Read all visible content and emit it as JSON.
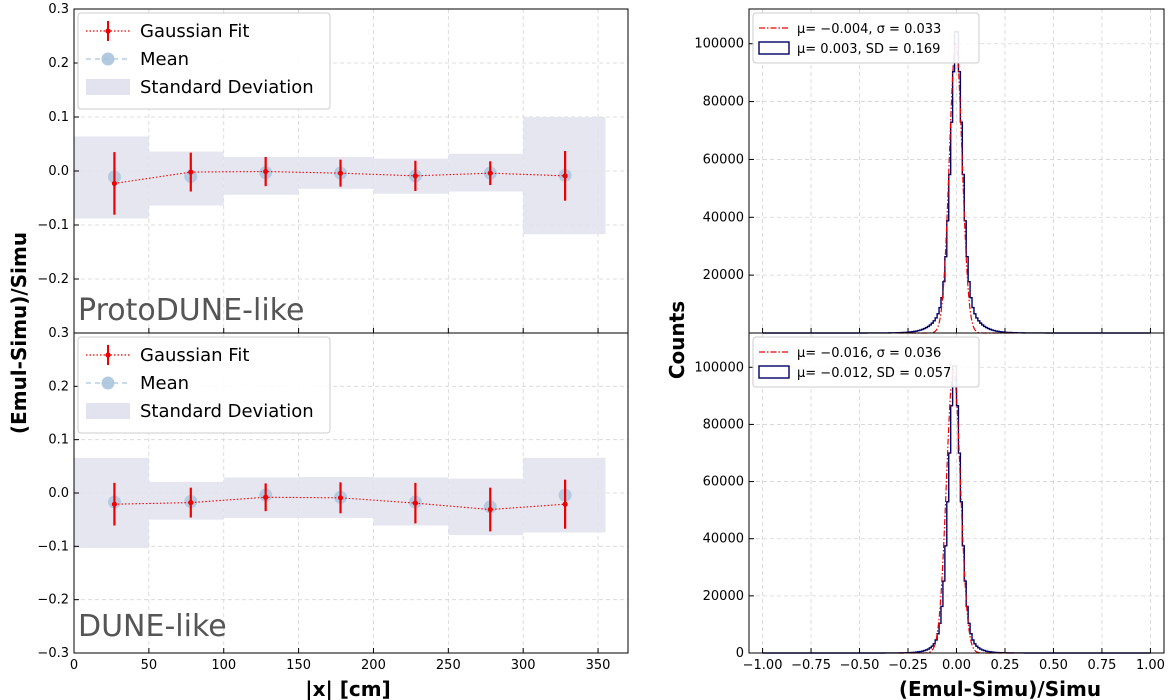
{
  "colors": {
    "fit": "#ee0000",
    "mean": "#a9c4dd",
    "band": "#e3e3f0",
    "hist": "#000066",
    "grid": "#d5d5d5"
  },
  "left": {
    "ylabel": "(Emul-Simu)/Simu",
    "xlabel": "|x| [cm]",
    "legend": [
      "Gaussian Fit",
      "Mean",
      "Standard Deviation"
    ],
    "yticks_top": [
      "0.3",
      "0.2",
      "0.1",
      "0.0",
      "−0.1",
      "−0.2"
    ],
    "yticks_bottom": [
      "0.3",
      "0.2",
      "0.1",
      "0.0",
      "−0.1",
      "−0.2",
      "−0.3"
    ],
    "xticks": [
      "0",
      "50",
      "100",
      "150",
      "200",
      "250",
      "300",
      "350"
    ]
  },
  "right": {
    "ylabel": "Counts",
    "xlabel": "(Emul-Simu)/Simu",
    "yticks_top": [
      "20000",
      "40000",
      "60000",
      "80000",
      "100000"
    ],
    "yticks_bottom": [
      "0",
      "20000",
      "40000",
      "60000",
      "80000",
      "100000"
    ],
    "xticks": [
      "−1.00",
      "−0.75",
      "−0.50",
      "−0.25",
      "0.00",
      "0.25",
      "0.50",
      "0.75",
      "1.00"
    ]
  },
  "chart_data": [
    {
      "type": "scatter",
      "panel": "ProtoDUNE-like",
      "xlabel": "|x| [cm]",
      "ylabel": "(Emul-Simu)/Simu",
      "xlim": [
        0,
        370
      ],
      "ylim": [
        -0.3,
        0.3
      ],
      "grid": true,
      "legend_position": "upper-left",
      "bins": [
        [
          0,
          50
        ],
        [
          50,
          100
        ],
        [
          100,
          150
        ],
        [
          150,
          200
        ],
        [
          200,
          250
        ],
        [
          250,
          300
        ],
        [
          300,
          355
        ]
      ],
      "x": [
        27,
        78,
        128,
        178,
        228,
        278,
        328
      ],
      "series": [
        {
          "name": "Gaussian Fit",
          "values": [
            -0.023,
            -0.002,
            -0.001,
            -0.004,
            -0.009,
            -0.004,
            -0.009
          ],
          "errors": [
            0.058,
            0.036,
            0.027,
            0.025,
            0.028,
            0.022,
            0.046
          ]
        },
        {
          "name": "Mean",
          "values": [
            -0.011,
            -0.01,
            -0.003,
            -0.004,
            -0.009,
            -0.004,
            -0.008
          ]
        },
        {
          "name": "Standard Deviation",
          "low": [
            -0.088,
            -0.064,
            -0.044,
            -0.033,
            -0.042,
            -0.038,
            -0.117
          ],
          "high": [
            0.064,
            0.036,
            0.026,
            0.026,
            0.023,
            0.032,
            0.1
          ]
        }
      ]
    },
    {
      "type": "scatter",
      "panel": "DUNE-like",
      "xlabel": "|x| [cm]",
      "ylabel": "(Emul-Simu)/Simu",
      "xlim": [
        0,
        370
      ],
      "ylim": [
        -0.3,
        0.3
      ],
      "grid": true,
      "legend_position": "upper-left",
      "bins": [
        [
          0,
          50
        ],
        [
          50,
          100
        ],
        [
          100,
          150
        ],
        [
          150,
          200
        ],
        [
          200,
          250
        ],
        [
          250,
          300
        ],
        [
          300,
          355
        ]
      ],
      "x": [
        27,
        78,
        128,
        178,
        228,
        278,
        328
      ],
      "series": [
        {
          "name": "Gaussian Fit",
          "values": [
            -0.021,
            -0.018,
            -0.008,
            -0.009,
            -0.019,
            -0.031,
            -0.021
          ],
          "errors": [
            0.04,
            0.028,
            0.026,
            0.029,
            0.038,
            0.041,
            0.046
          ]
        },
        {
          "name": "Mean",
          "values": [
            -0.017,
            -0.016,
            -0.004,
            -0.008,
            -0.017,
            -0.026,
            -0.004
          ]
        },
        {
          "name": "Standard Deviation",
          "low": [
            -0.103,
            -0.05,
            -0.047,
            -0.047,
            -0.061,
            -0.079,
            -0.074
          ],
          "high": [
            0.066,
            0.021,
            0.029,
            0.03,
            0.029,
            0.027,
            0.066
          ]
        }
      ]
    },
    {
      "type": "line",
      "panel": "ProtoDUNE-like histogram",
      "xlabel": "(Emul-Simu)/Simu",
      "ylabel": "Counts",
      "xlim": [
        -1.07,
        1.07
      ],
      "ylim": [
        0,
        112000
      ],
      "grid": true,
      "legend_position": "upper-left",
      "legend": [
        {
          "label": "μ= −0.004,  σ  = 0.033",
          "style": "dash-dot"
        },
        {
          "label": "μ=    0.003,  SD = 0.169",
          "style": "step"
        }
      ],
      "series": [
        {
          "name": "Gaussian fit",
          "type": "gaussian",
          "mu": -0.004,
          "sigma": 0.033,
          "amplitude": 100000
        },
        {
          "name": "Histogram",
          "type": "step",
          "peak_x": 0.0,
          "peak_value": 109000,
          "core_width": 0.03,
          "tail_width": 0.1
        }
      ]
    },
    {
      "type": "line",
      "panel": "DUNE-like histogram",
      "xlabel": "(Emul-Simu)/Simu",
      "ylabel": "Counts",
      "xlim": [
        -1.07,
        1.07
      ],
      "ylim": [
        0,
        112000
      ],
      "grid": true,
      "legend_position": "upper-left",
      "legend": [
        {
          "label": "μ= −0.016,  σ  = 0.036",
          "style": "dash-dot"
        },
        {
          "label": "μ= −0.012,  SD = 0.057",
          "style": "step"
        }
      ],
      "series": [
        {
          "name": "Gaussian fit",
          "type": "gaussian",
          "mu": -0.016,
          "sigma": 0.036,
          "amplitude": 99000
        },
        {
          "name": "Histogram",
          "type": "step",
          "peak_x": -0.01,
          "peak_value": 106000,
          "core_width": 0.032,
          "tail_width": 0.08
        }
      ]
    }
  ],
  "tags": [
    "ProtoDUNE-like",
    "DUNE-like"
  ]
}
